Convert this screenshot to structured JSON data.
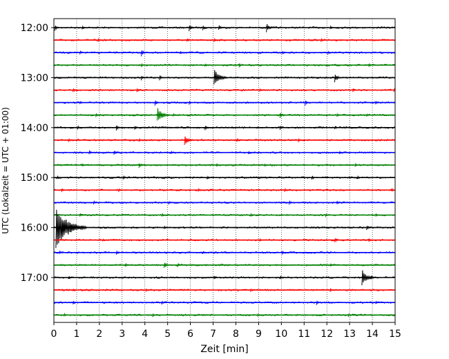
{
  "chart_data": {
    "type": "line",
    "xlabel": "Zeit  [min]",
    "ylabel": "UTC (Lokalzeit = UTC + 01:00)",
    "xlim": [
      0,
      15
    ],
    "x_ticks": [
      "0",
      "1",
      "2",
      "3",
      "4",
      "5",
      "6",
      "7",
      "8",
      "9",
      "10",
      "11",
      "12",
      "13",
      "14",
      "15"
    ],
    "y_tick_labels": [
      "12:00",
      "13:00",
      "14:00",
      "15:00",
      "16:00",
      "17:00"
    ],
    "grid": "vertical dotted",
    "trace_colors": [
      "#000000",
      "#ff0000",
      "#0000ff",
      "#008000"
    ],
    "series": [
      {
        "start": "12:00",
        "events": [
          [
            0.1,
            5
          ],
          [
            1.3,
            3
          ],
          [
            6.0,
            6
          ],
          [
            6.6,
            4
          ],
          [
            7.3,
            5
          ],
          [
            9.4,
            7
          ],
          [
            12.2,
            3
          ]
        ]
      },
      {
        "start": "12:15",
        "events": [
          [
            2.0,
            3
          ],
          [
            5.9,
            3
          ],
          [
            7.1,
            3
          ],
          [
            11.8,
            3
          ]
        ]
      },
      {
        "start": "12:30",
        "events": [
          [
            1.2,
            3
          ],
          [
            3.9,
            6
          ],
          [
            5.6,
            3
          ],
          [
            10.1,
            3
          ],
          [
            12.1,
            3
          ]
        ]
      },
      {
        "start": "12:45",
        "events": [
          [
            3.9,
            3
          ],
          [
            6.7,
            3
          ],
          [
            8.2,
            4
          ],
          [
            13.9,
            3
          ]
        ]
      },
      {
        "start": "13:00",
        "events": [
          [
            3.9,
            4
          ],
          [
            4.7,
            5
          ],
          [
            7.1,
            14
          ],
          [
            12.4,
            7
          ]
        ]
      },
      {
        "start": "13:15",
        "events": [
          [
            0.9,
            4
          ],
          [
            3.7,
            4
          ],
          [
            9.1,
            3
          ],
          [
            13.2,
            3
          ],
          [
            15.0,
            4
          ]
        ]
      },
      {
        "start": "13:30",
        "events": [
          [
            1.2,
            3
          ],
          [
            4.5,
            5
          ],
          [
            6.0,
            3
          ],
          [
            11.1,
            5
          ],
          [
            14.2,
            3
          ]
        ]
      },
      {
        "start": "13:45",
        "events": [
          [
            1.9,
            3
          ],
          [
            4.6,
            13
          ],
          [
            5.3,
            3
          ],
          [
            10.0,
            5
          ],
          [
            12.5,
            4
          ],
          [
            13.8,
            3
          ]
        ]
      },
      {
        "start": "14:00",
        "events": [
          [
            1.1,
            3
          ],
          [
            2.8,
            5
          ],
          [
            3.6,
            4
          ],
          [
            6.7,
            5
          ],
          [
            10.0,
            4
          ],
          [
            12.4,
            3
          ]
        ]
      },
      {
        "start": "14:15",
        "events": [
          [
            0.7,
            3
          ],
          [
            3.8,
            3
          ],
          [
            5.8,
            9
          ],
          [
            8.1,
            3
          ],
          [
            10.8,
            4
          ]
        ]
      },
      {
        "start": "14:30",
        "events": [
          [
            1.6,
            4
          ],
          [
            2.7,
            4
          ],
          [
            5.2,
            3
          ],
          [
            8.6,
            3
          ],
          [
            12.6,
            3
          ]
        ]
      },
      {
        "start": "14:45",
        "events": [
          [
            1.3,
            3
          ],
          [
            3.8,
            5
          ],
          [
            7.2,
            3
          ],
          [
            9.3,
            3
          ],
          [
            13.3,
            3
          ]
        ]
      },
      {
        "start": "15:00",
        "events": [
          [
            0.2,
            3
          ],
          [
            3.1,
            3
          ],
          [
            6.8,
            3
          ],
          [
            11.4,
            4
          ],
          [
            13.4,
            3
          ]
        ]
      },
      {
        "start": "15:15",
        "events": [
          [
            0.4,
            3
          ],
          [
            2.9,
            3
          ],
          [
            6.4,
            3
          ],
          [
            10.2,
            3
          ],
          [
            14.9,
            3
          ]
        ]
      },
      {
        "start": "15:30",
        "events": [
          [
            1.8,
            3
          ],
          [
            5.1,
            3
          ],
          [
            10.4,
            4
          ],
          [
            12.5,
            3
          ]
        ]
      },
      {
        "start": "15:45",
        "events": [
          [
            1.2,
            3
          ],
          [
            4.8,
            3
          ],
          [
            8.7,
            3
          ],
          [
            12.0,
            3
          ],
          [
            14.2,
            3
          ]
        ]
      },
      {
        "start": "16:00",
        "events": [
          [
            0.15,
            32
          ],
          [
            0.4,
            12
          ],
          [
            0.8,
            7
          ],
          [
            1.3,
            5
          ],
          [
            4.9,
            3
          ],
          [
            13.8,
            5
          ]
        ]
      },
      {
        "start": "16:15",
        "events": [
          [
            2.2,
            3
          ],
          [
            9.1,
            3
          ],
          [
            12.4,
            5
          ],
          [
            13.9,
            3
          ]
        ]
      },
      {
        "start": "16:30",
        "events": [
          [
            0.3,
            3
          ],
          [
            2.8,
            4
          ],
          [
            6.6,
            3
          ],
          [
            10.1,
            3
          ]
        ]
      },
      {
        "start": "16:45",
        "events": [
          [
            3.2,
            3
          ],
          [
            4.9,
            6
          ],
          [
            5.5,
            3
          ],
          [
            12.2,
            3
          ]
        ]
      },
      {
        "start": "17:00",
        "events": [
          [
            0.7,
            3
          ],
          [
            7.1,
            3
          ],
          [
            10.0,
            3
          ],
          [
            13.6,
            13
          ],
          [
            14.0,
            3
          ]
        ]
      },
      {
        "start": "17:15",
        "events": [
          [
            0.9,
            3
          ],
          [
            4.1,
            3
          ],
          [
            8.7,
            3
          ],
          [
            12.2,
            3
          ]
        ]
      },
      {
        "start": "17:30",
        "events": [
          [
            0.9,
            3
          ],
          [
            4.8,
            3
          ],
          [
            11.6,
            4
          ],
          [
            14.2,
            3
          ]
        ]
      },
      {
        "start": "17:45",
        "events": [
          [
            0.5,
            3
          ],
          [
            4.4,
            3
          ],
          [
            9.0,
            3
          ],
          [
            13.0,
            3
          ]
        ]
      }
    ]
  }
}
